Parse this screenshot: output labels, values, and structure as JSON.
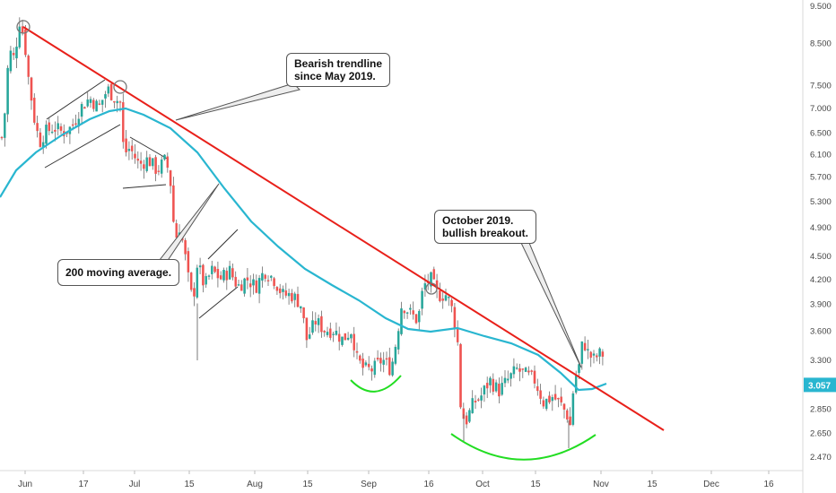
{
  "chart_data": {
    "type": "candlestick",
    "colors": {
      "up": "#26a69a",
      "down": "#ef5350",
      "candle_body": "#7d6a6a",
      "trendline": "#e8201a",
      "moving_average": "#29b6d0",
      "pattern_lines": "#333333",
      "cup_arcs": "#22dd22",
      "last_price_tag": "#29b6d0"
    },
    "y_axis": {
      "scale": "log",
      "ticks": [
        "9.500",
        "8.500",
        "7.500",
        "7.000",
        "6.500",
        "6.100",
        "5.700",
        "5.300",
        "4.900",
        "4.500",
        "4.200",
        "3.900",
        "3.600",
        "3.300",
        "2.850",
        "2.650",
        "2.470"
      ],
      "range": [
        2.4,
        9.7
      ]
    },
    "x_axis": {
      "ticks": [
        "Jun",
        "17",
        "Jul",
        "15",
        "Aug",
        "15",
        "Sep",
        "16",
        "Oct",
        "15",
        "Nov",
        "15",
        "Dec",
        "16"
      ]
    },
    "last_price": "3.057",
    "moving_average_label": "200 moving average.",
    "trendline_label": "Bearish trendline since May 2019.",
    "breakout_label": "October 2019. bullish breakout."
  },
  "annotations": {
    "trendline_line1": "Bearish trendline",
    "trendline_line2": "since May 2019.",
    "ma_text": "200 moving average.",
    "breakout_line1": "October 2019.",
    "breakout_line2": "bullish breakout."
  }
}
